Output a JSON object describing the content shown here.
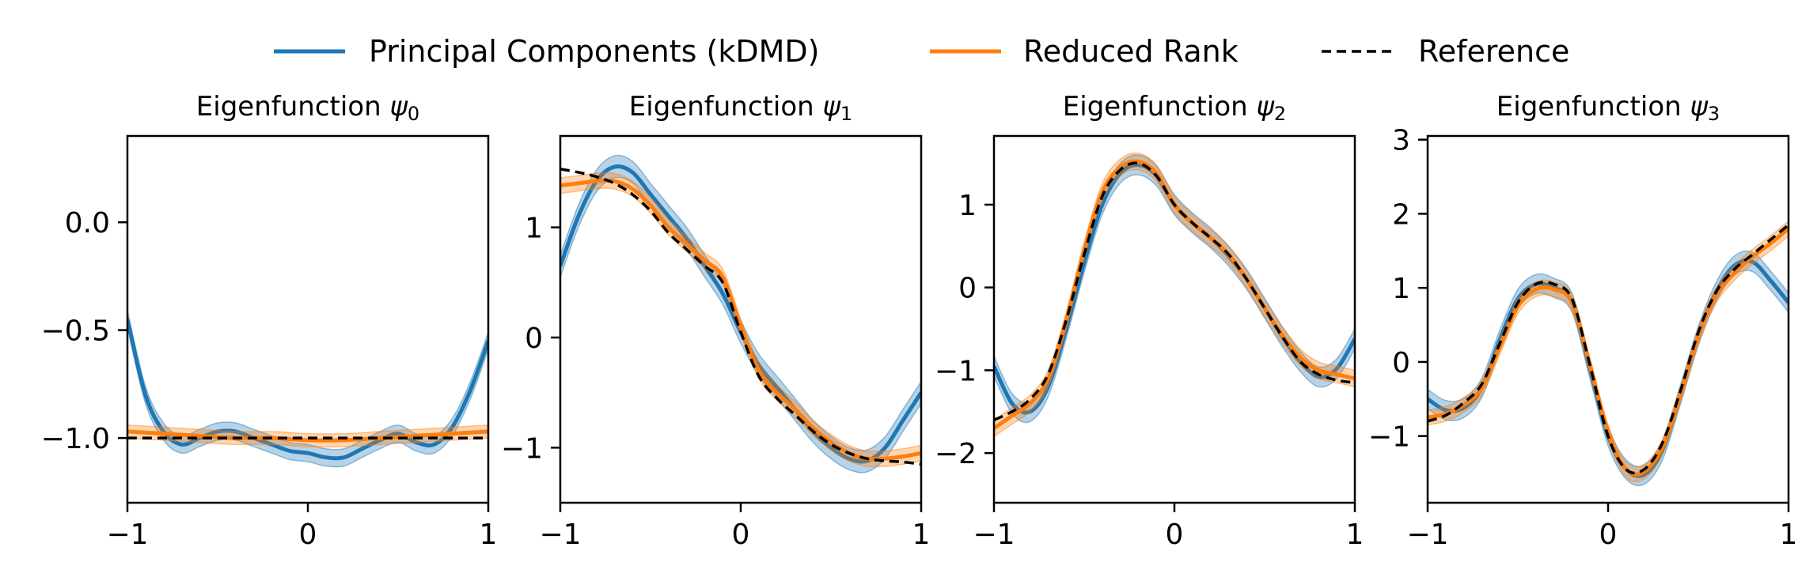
{
  "legend": {
    "placement": "top-center",
    "items": [
      {
        "label": "Principal Components (kDMD)",
        "color": "#1f77b4",
        "style": "solid"
      },
      {
        "label": "Reduced Rank",
        "color": "#ff7f0e",
        "style": "solid"
      },
      {
        "label": "Reference",
        "color": "#000000",
        "style": "dashed"
      }
    ]
  },
  "chart_data": [
    {
      "type": "line",
      "title": "Eigenfunction ψ0",
      "title_main": "Eigenfunction ",
      "title_sym": "ψ",
      "title_sub": "0",
      "xlim": [
        -1,
        1
      ],
      "ylim": [
        -1.3,
        0.4
      ],
      "xticks": [
        -1,
        0,
        1
      ],
      "xtick_labels": [
        "−1",
        "0",
        "1"
      ],
      "yticks": [
        0.0,
        -0.5,
        -1.0
      ],
      "ytick_labels": [
        "0.0",
        "−0.5",
        "−1.0"
      ],
      "series": [
        {
          "name": "Principal Components (kDMD)",
          "band": 0.04,
          "x": [
            -1,
            -0.9,
            -0.8,
            -0.7,
            -0.6,
            -0.5,
            -0.4,
            -0.3,
            -0.2,
            -0.1,
            0,
            0.1,
            0.2,
            0.3,
            0.4,
            0.5,
            0.6,
            0.7,
            0.8,
            0.9,
            1
          ],
          "y": [
            -0.45,
            -0.8,
            -0.97,
            -1.03,
            -1.0,
            -0.97,
            -0.97,
            -1.0,
            -1.03,
            -1.06,
            -1.07,
            -1.09,
            -1.09,
            -1.05,
            -1.01,
            -0.98,
            -1.02,
            -1.03,
            -0.95,
            -0.78,
            -0.55
          ]
        },
        {
          "name": "Reduced Rank",
          "band": 0.03,
          "x": [
            -1,
            -0.8,
            -0.6,
            -0.4,
            -0.2,
            0,
            0.2,
            0.4,
            0.6,
            0.8,
            1
          ],
          "y": [
            -0.97,
            -0.98,
            -0.99,
            -1.0,
            -1.0,
            -1.01,
            -1.01,
            -1.0,
            -0.99,
            -0.98,
            -0.97
          ]
        },
        {
          "name": "Reference",
          "x": [
            -1,
            1
          ],
          "y": [
            -1.0,
            -1.0
          ]
        }
      ]
    },
    {
      "type": "line",
      "title": "Eigenfunction ψ1",
      "title_main": "Eigenfunction ",
      "title_sym": "ψ",
      "title_sub": "1",
      "xlim": [
        -1,
        1
      ],
      "ylim": [
        -1.5,
        1.83
      ],
      "xticks": [
        -1,
        0,
        1
      ],
      "xtick_labels": [
        "−1",
        "0",
        "1"
      ],
      "yticks": [
        1,
        0,
        -1
      ],
      "ytick_labels": [
        "1",
        "0",
        "−1"
      ],
      "series": [
        {
          "name": "Principal Components (kDMD)",
          "band": 0.1,
          "x": [
            -1,
            -0.9,
            -0.8,
            -0.7,
            -0.6,
            -0.5,
            -0.4,
            -0.3,
            -0.2,
            -0.1,
            0,
            0.1,
            0.2,
            0.3,
            0.4,
            0.5,
            0.6,
            0.7,
            0.8,
            0.9,
            1
          ],
          "y": [
            0.65,
            1.1,
            1.42,
            1.55,
            1.5,
            1.3,
            1.1,
            0.9,
            0.65,
            0.4,
            0.05,
            -0.25,
            -0.45,
            -0.65,
            -0.85,
            -1.0,
            -1.1,
            -1.12,
            -1.0,
            -0.75,
            -0.5
          ]
        },
        {
          "name": "Reduced Rank",
          "band": 0.07,
          "x": [
            -1,
            -0.9,
            -0.8,
            -0.7,
            -0.6,
            -0.5,
            -0.4,
            -0.3,
            -0.2,
            -0.1,
            0,
            0.1,
            0.2,
            0.3,
            0.4,
            0.5,
            0.6,
            0.7,
            0.8,
            0.9,
            1
          ],
          "y": [
            1.38,
            1.4,
            1.42,
            1.42,
            1.35,
            1.2,
            1.0,
            0.85,
            0.7,
            0.55,
            0.1,
            -0.3,
            -0.5,
            -0.65,
            -0.82,
            -0.95,
            -1.05,
            -1.1,
            -1.1,
            -1.08,
            -1.05
          ]
        },
        {
          "name": "Reference",
          "x": [
            -1,
            -0.9,
            -0.8,
            -0.7,
            -0.6,
            -0.5,
            -0.4,
            -0.3,
            -0.2,
            -0.1,
            0,
            0.1,
            0.2,
            0.3,
            0.4,
            0.5,
            0.6,
            0.7,
            0.8,
            0.9,
            1
          ],
          "y": [
            1.53,
            1.5,
            1.46,
            1.4,
            1.3,
            1.15,
            0.95,
            0.8,
            0.65,
            0.5,
            0.05,
            -0.35,
            -0.55,
            -0.7,
            -0.85,
            -0.97,
            -1.05,
            -1.1,
            -1.12,
            -1.13,
            -1.15
          ]
        }
      ]
    },
    {
      "type": "line",
      "title": "Eigenfunction ψ2",
      "title_main": "Eigenfunction ",
      "title_sym": "ψ",
      "title_sub": "2",
      "xlim": [
        -1,
        1
      ],
      "ylim": [
        -2.6,
        1.83
      ],
      "xticks": [
        -1,
        0,
        1
      ],
      "xtick_labels": [
        "−1",
        "0",
        "1"
      ],
      "yticks": [
        1,
        0,
        -1,
        -2
      ],
      "ytick_labels": [
        "1",
        "0",
        "−1",
        "−2"
      ],
      "series": [
        {
          "name": "Principal Components (kDMD)",
          "band": 0.12,
          "x": [
            -1,
            -0.9,
            -0.8,
            -0.7,
            -0.6,
            -0.5,
            -0.4,
            -0.3,
            -0.2,
            -0.1,
            0,
            0.1,
            0.2,
            0.3,
            0.4,
            0.5,
            0.6,
            0.7,
            0.8,
            0.9,
            1
          ],
          "y": [
            -0.95,
            -1.4,
            -1.5,
            -1.2,
            -0.5,
            0.3,
            1.0,
            1.38,
            1.48,
            1.35,
            1.0,
            0.78,
            0.6,
            0.38,
            0.1,
            -0.25,
            -0.6,
            -0.9,
            -1.08,
            -0.98,
            -0.62
          ]
        },
        {
          "name": "Reduced Rank",
          "band": 0.1,
          "x": [
            -1,
            -0.9,
            -0.8,
            -0.7,
            -0.6,
            -0.5,
            -0.4,
            -0.3,
            -0.2,
            -0.1,
            0,
            0.1,
            0.2,
            0.3,
            0.4,
            0.5,
            0.6,
            0.7,
            0.8,
            0.9,
            1
          ],
          "y": [
            -1.7,
            -1.55,
            -1.4,
            -1.1,
            -0.4,
            0.45,
            1.15,
            1.45,
            1.52,
            1.38,
            1.0,
            0.78,
            0.6,
            0.4,
            0.1,
            -0.25,
            -0.58,
            -0.85,
            -1.0,
            -1.05,
            -1.1
          ]
        },
        {
          "name": "Reference",
          "x": [
            -1,
            -0.9,
            -0.8,
            -0.7,
            -0.6,
            -0.5,
            -0.4,
            -0.3,
            -0.2,
            -0.1,
            0,
            0.1,
            0.2,
            0.3,
            0.4,
            0.5,
            0.6,
            0.7,
            0.8,
            0.9,
            1
          ],
          "y": [
            -1.6,
            -1.5,
            -1.35,
            -1.05,
            -0.4,
            0.4,
            1.1,
            1.42,
            1.5,
            1.35,
            1.0,
            0.78,
            0.6,
            0.4,
            0.1,
            -0.25,
            -0.6,
            -0.9,
            -1.05,
            -1.12,
            -1.15
          ]
        }
      ]
    },
    {
      "type": "line",
      "title": "Eigenfunction ψ3",
      "title_main": "Eigenfunction ",
      "title_sym": "ψ",
      "title_sub": "3",
      "xlim": [
        -1,
        1
      ],
      "ylim": [
        -1.9,
        3.05
      ],
      "xticks": [
        -1,
        0,
        1
      ],
      "xtick_labels": [
        "−1",
        "0",
        "1"
      ],
      "yticks": [
        3,
        2,
        1,
        0,
        -1
      ],
      "ytick_labels": [
        "3",
        "2",
        "1",
        "0",
        "−1"
      ],
      "series": [
        {
          "name": "Principal Components (kDMD)",
          "band": 0.13,
          "x": [
            -1,
            -0.9,
            -0.8,
            -0.7,
            -0.6,
            -0.5,
            -0.4,
            -0.3,
            -0.2,
            -0.1,
            0,
            0.1,
            0.2,
            0.3,
            0.4,
            0.5,
            0.6,
            0.7,
            0.8,
            0.9,
            1
          ],
          "y": [
            -0.5,
            -0.65,
            -0.62,
            -0.35,
            0.3,
            0.85,
            1.05,
            1.0,
            0.8,
            -0.1,
            -1.0,
            -1.45,
            -1.52,
            -1.2,
            -0.45,
            0.35,
            0.95,
            1.3,
            1.35,
            1.1,
            0.8
          ]
        },
        {
          "name": "Reduced Rank",
          "band": 0.1,
          "x": [
            -1,
            -0.9,
            -0.8,
            -0.7,
            -0.6,
            -0.5,
            -0.4,
            -0.3,
            -0.2,
            -0.1,
            0,
            0.1,
            0.2,
            0.3,
            0.4,
            0.5,
            0.6,
            0.7,
            0.8,
            0.9,
            1
          ],
          "y": [
            -0.75,
            -0.7,
            -0.58,
            -0.35,
            0.2,
            0.75,
            0.98,
            0.98,
            0.8,
            -0.05,
            -0.95,
            -1.45,
            -1.48,
            -1.15,
            -0.45,
            0.35,
            0.9,
            1.2,
            1.42,
            1.6,
            1.8
          ]
        },
        {
          "name": "Reference",
          "x": [
            -1,
            -0.9,
            -0.8,
            -0.7,
            -0.6,
            -0.5,
            -0.4,
            -0.3,
            -0.2,
            -0.1,
            0,
            0.1,
            0.2,
            0.3,
            0.4,
            0.5,
            0.6,
            0.7,
            0.8,
            0.9,
            1
          ],
          "y": [
            -0.8,
            -0.72,
            -0.55,
            -0.3,
            0.25,
            0.8,
            1.05,
            1.05,
            0.85,
            -0.05,
            -1.0,
            -1.45,
            -1.45,
            -1.1,
            -0.4,
            0.4,
            0.95,
            1.25,
            1.45,
            1.65,
            1.85
          ]
        }
      ]
    }
  ]
}
